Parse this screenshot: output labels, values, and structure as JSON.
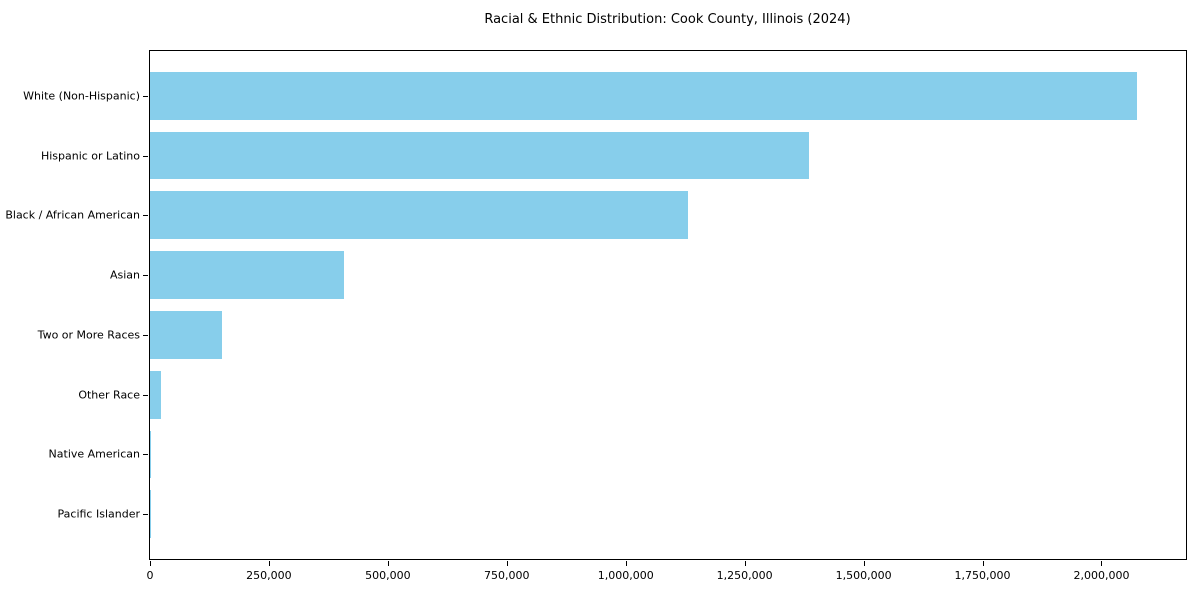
{
  "title": "Racial & Ethnic Distribution: Cook County, Illinois (2024)",
  "colors": {
    "bar": "#87CEEB",
    "axis": "#000000",
    "text": "#000000",
    "background": "#ffffff"
  },
  "chart_data": {
    "type": "bar",
    "orientation": "horizontal",
    "title": "Racial & Ethnic Distribution: Cook County, Illinois (2024)",
    "xlabel": "",
    "ylabel": "",
    "categories": [
      "White (Non-Hispanic)",
      "Hispanic or Latino",
      "Black / African American",
      "Asian",
      "Two or More Races",
      "Other Race",
      "Native American",
      "Pacific Islander"
    ],
    "values": [
      2074000,
      1385000,
      1131000,
      408000,
      151000,
      24000,
      3000,
      1100
    ],
    "bar_color": "#87CEEB",
    "xlim": [
      0,
      2177700
    ],
    "x_ticks": [
      0,
      250000,
      500000,
      750000,
      1000000,
      1250000,
      1500000,
      1750000,
      2000000
    ],
    "x_tick_labels": [
      "0",
      "250,000",
      "500,000",
      "750,000",
      "1,000,000",
      "1,250,000",
      "1,500,000",
      "1,750,000",
      "2,000,000"
    ],
    "grid": false,
    "legend": null
  }
}
